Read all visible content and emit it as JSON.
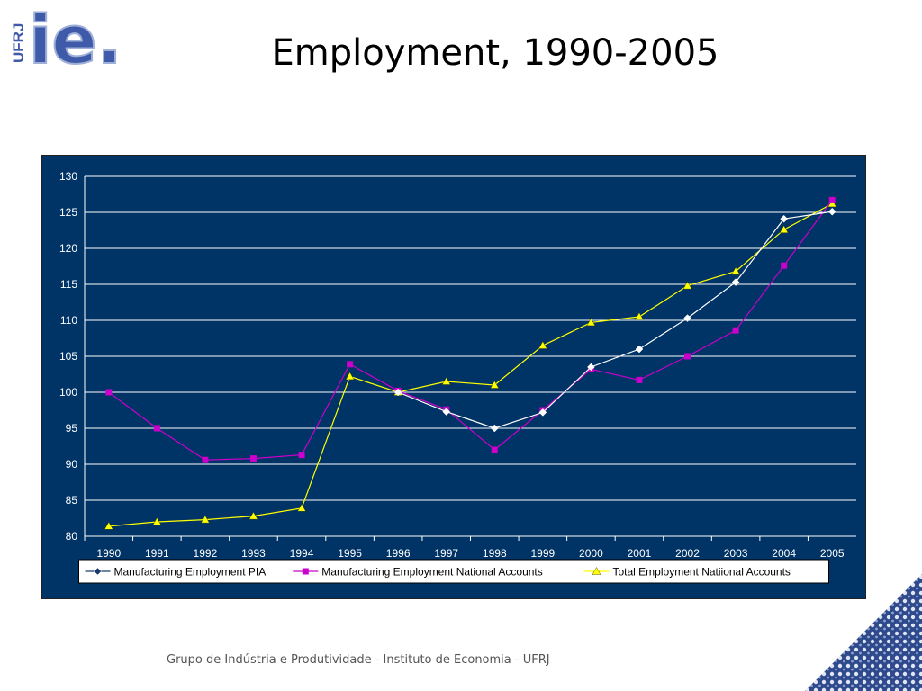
{
  "slide": {
    "title": "Employment, 1990-2005",
    "logo_side_text": "UFRJ",
    "logo_text": "ie.",
    "footer": "Grupo de Indústria e Produtividade - Instituto de Economia - UFRJ"
  },
  "colors": {
    "plot_background": "#003366",
    "gridline": "#ffffff",
    "series_pia": "#ffffff",
    "series_na": "#cc00cc",
    "series_total": "#ffff00",
    "logo_blue": "#3f5aa8"
  },
  "chart_data": {
    "type": "line",
    "title": "",
    "xlabel": "",
    "ylabel": "",
    "ylim": [
      80,
      130
    ],
    "y_ticks": [
      "80",
      "85",
      "90",
      "95",
      "100",
      "105",
      "110",
      "115",
      "120",
      "125",
      "130"
    ],
    "categories": [
      "1990",
      "1991",
      "1992",
      "1993",
      "1994",
      "1995",
      "1996",
      "1997",
      "1998",
      "1999",
      "2000",
      "2001",
      "2002",
      "2003",
      "2004",
      "2005"
    ],
    "grid": true,
    "legend_position": "bottom",
    "series": [
      {
        "name": "Manufacturing Employment PIA",
        "marker": "diamond",
        "values": [
          null,
          null,
          null,
          null,
          null,
          null,
          100.0,
          97.3,
          95.0,
          97.2,
          103.5,
          106.0,
          110.3,
          115.3,
          124.1,
          125.1
        ]
      },
      {
        "name": "Manufacturing Employment National Accounts",
        "marker": "square",
        "values": [
          100.0,
          95.0,
          90.6,
          90.8,
          91.3,
          103.9,
          100.2,
          97.6,
          92.0,
          97.5,
          103.2,
          101.7,
          105.0,
          108.6,
          117.6,
          126.7
        ]
      },
      {
        "name": "Total Employment Natiional Accounts",
        "marker": "triangle",
        "values": [
          81.4,
          82.0,
          82.3,
          82.8,
          83.9,
          102.2,
          100.0,
          101.5,
          101.0,
          106.5,
          109.7,
          110.5,
          114.8,
          116.8,
          122.6,
          126.2
        ]
      }
    ]
  }
}
